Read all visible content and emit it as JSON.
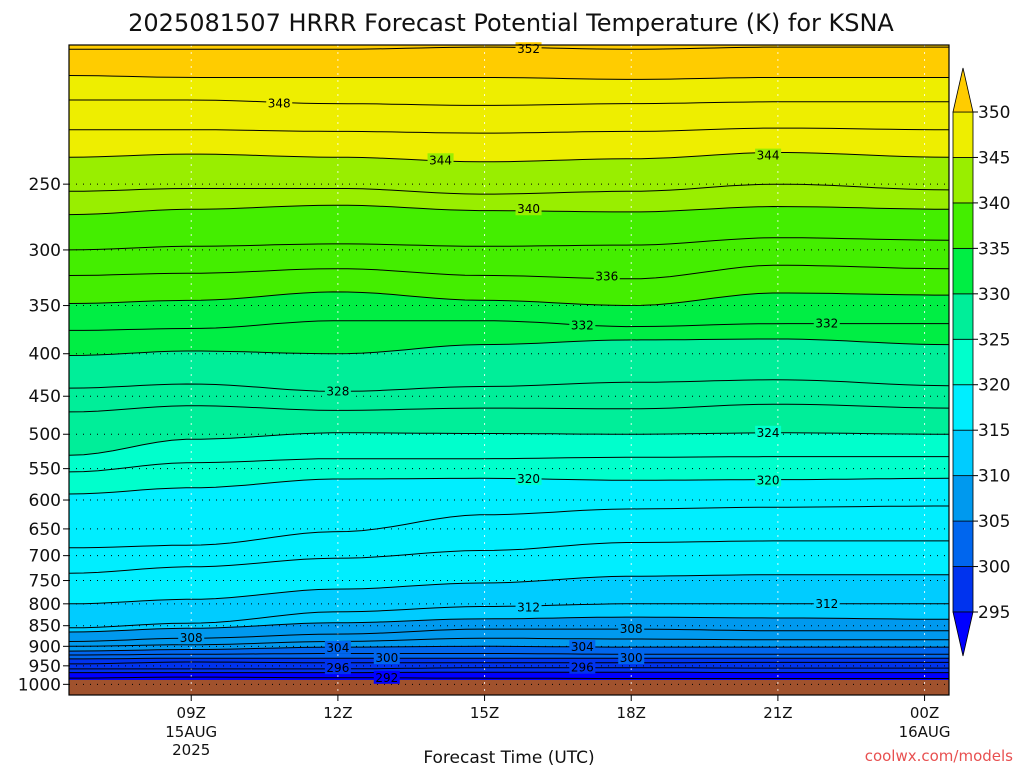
{
  "chart_data": {
    "type": "contour",
    "title": "2025081507 HRRR Forecast Potential Temperature (K) for KSNA",
    "xlabel": "Forecast Time (UTC)",
    "ylabel": "",
    "credit": "coolwx.com/models",
    "y_scale": "log-pressure",
    "ylim": [
      1030,
      170
    ],
    "xlim_hours": [
      6.5,
      24.5
    ],
    "y_ticks": [
      250,
      300,
      350,
      400,
      450,
      500,
      550,
      600,
      650,
      700,
      750,
      800,
      850,
      900,
      950,
      1000
    ],
    "x_ticks": [
      {
        "hour": 9,
        "label": "09Z",
        "sub": "15AUG",
        "sub2": "2025"
      },
      {
        "hour": 12,
        "label": "12Z",
        "sub": "",
        "sub2": ""
      },
      {
        "hour": 15,
        "label": "15Z",
        "sub": "",
        "sub2": ""
      },
      {
        "hour": 18,
        "label": "18Z",
        "sub": "",
        "sub2": ""
      },
      {
        "hour": 21,
        "label": "21Z",
        "sub": "",
        "sub2": ""
      },
      {
        "hour": 24,
        "label": "00Z",
        "sub": "16AUG",
        "sub2": ""
      }
    ],
    "colorbar": {
      "levels": [
        295,
        300,
        305,
        310,
        315,
        320,
        325,
        330,
        335,
        340,
        345,
        350
      ],
      "colors": [
        "#0000ff",
        "#0033ee",
        "#0066ee",
        "#0099ee",
        "#00ccff",
        "#00eeff",
        "#00ffcc",
        "#00ee99",
        "#00ee44",
        "#44ee00",
        "#99ee00",
        "#eeee00",
        "#ffcc00"
      ]
    },
    "ground_color": "#a0522d",
    "contour_hours": [
      6.5,
      9,
      12,
      15,
      18,
      21,
      24.5
    ],
    "contours": [
      {
        "theta": 352,
        "p": [
          172,
          172,
          172,
          171,
          172,
          171,
          171
        ]
      },
      {
        "theta": 350,
        "p": [
          185,
          186,
          186,
          186,
          187,
          186,
          186
        ]
      },
      {
        "theta": 348,
        "p": [
          198,
          198,
          200,
          201,
          200,
          199,
          199
        ]
      },
      {
        "theta": 346,
        "p": [
          215,
          215,
          216,
          217,
          216,
          214,
          215
        ]
      },
      {
        "theta": 344,
        "p": [
          232,
          230,
          232,
          235,
          233,
          229,
          232
        ]
      },
      {
        "theta": 342,
        "p": [
          255,
          253,
          253,
          257,
          255,
          250,
          254
        ]
      },
      {
        "theta": 340,
        "p": [
          272,
          268,
          265,
          269,
          270,
          266,
          268
        ]
      },
      {
        "theta": 338,
        "p": [
          300,
          297,
          295,
          297,
          296,
          290,
          292
        ]
      },
      {
        "theta": 336,
        "p": [
          322,
          320,
          316,
          322,
          325,
          313,
          316
        ]
      },
      {
        "theta": 334,
        "p": [
          348,
          345,
          337,
          345,
          350,
          338,
          340
        ]
      },
      {
        "theta": 332,
        "p": [
          375,
          373,
          365,
          365,
          371,
          368,
          368
        ]
      },
      {
        "theta": 330,
        "p": [
          402,
          397,
          400,
          390,
          385,
          384,
          390
        ]
      },
      {
        "theta": 328,
        "p": [
          440,
          435,
          444,
          438,
          433,
          430,
          437
        ]
      },
      {
        "theta": 326,
        "p": [
          470,
          462,
          468,
          465,
          466,
          460,
          465
        ]
      },
      {
        "theta": 324,
        "p": [
          530,
          507,
          498,
          499,
          500,
          498,
          500
        ]
      },
      {
        "theta": 322,
        "p": [
          555,
          541,
          535,
          535,
          533,
          532,
          532
        ]
      },
      {
        "theta": 320,
        "p": [
          590,
          580,
          566,
          565,
          568,
          567,
          565
        ]
      },
      {
        "theta": 318,
        "p": [
          685,
          680,
          655,
          625,
          615,
          612,
          610
        ]
      },
      {
        "theta": 316,
        "p": [
          735,
          722,
          705,
          690,
          675,
          672,
          672
        ]
      },
      {
        "theta": 314,
        "p": [
          800,
          790,
          768,
          755,
          741,
          738,
          738
        ]
      },
      {
        "theta": 312,
        "p": [
          855,
          844,
          818,
          806,
          800,
          800,
          800
        ]
      },
      {
        "theta": 310,
        "p": [
          865,
          856,
          843,
          834,
          830,
          832,
          835
        ]
      },
      {
        "theta": 308,
        "p": [
          888,
          880,
          870,
          858,
          858,
          862,
          862
        ]
      },
      {
        "theta": 306,
        "p": [
          900,
          896,
          888,
          880,
          882,
          884,
          884
        ]
      },
      {
        "theta": 304,
        "p": [
          912,
          908,
          902,
          900,
          902,
          902,
          902
        ]
      },
      {
        "theta": 302,
        "p": [
          922,
          920,
          918,
          918,
          920,
          920,
          920
        ]
      },
      {
        "theta": 300,
        "p": [
          932,
          930,
          930,
          930,
          930,
          930,
          930
        ]
      },
      {
        "theta": 298,
        "p": [
          945,
          940,
          942,
          942,
          942,
          941,
          941
        ]
      },
      {
        "theta": 296,
        "p": [
          958,
          958,
          958,
          955,
          955,
          956,
          956
        ]
      },
      {
        "theta": 294,
        "p": [
          968,
          968,
          968,
          967,
          967,
          968,
          968
        ]
      },
      {
        "theta": 292,
        "p": [
          983,
          980,
          982,
          983,
          984,
          984,
          984
        ]
      }
    ],
    "contour_labels": [
      {
        "text": "352",
        "hour": 15.9,
        "p": 172
      },
      {
        "text": "348",
        "hour": 10.8,
        "p": 200
      },
      {
        "text": "344",
        "hour": 14.1,
        "p": 234
      },
      {
        "text": "344",
        "hour": 20.8,
        "p": 231
      },
      {
        "text": "340",
        "hour": 15.9,
        "p": 268
      },
      {
        "text": "336",
        "hour": 17.5,
        "p": 323
      },
      {
        "text": "332",
        "hour": 17.0,
        "p": 370
      },
      {
        "text": "332",
        "hour": 22.0,
        "p": 368
      },
      {
        "text": "328",
        "hour": 12.0,
        "p": 444
      },
      {
        "text": "324",
        "hour": 20.8,
        "p": 498
      },
      {
        "text": "320",
        "hour": 15.9,
        "p": 566
      },
      {
        "text": "320",
        "hour": 20.8,
        "p": 568
      },
      {
        "text": "312",
        "hour": 15.9,
        "p": 808
      },
      {
        "text": "312",
        "hour": 22.0,
        "p": 800
      },
      {
        "text": "308",
        "hour": 9.0,
        "p": 880
      },
      {
        "text": "308",
        "hour": 18.0,
        "p": 858
      },
      {
        "text": "304",
        "hour": 12.0,
        "p": 904
      },
      {
        "text": "304",
        "hour": 17.0,
        "p": 902
      },
      {
        "text": "300",
        "hour": 13.0,
        "p": 930
      },
      {
        "text": "300",
        "hour": 18.0,
        "p": 930
      },
      {
        "text": "296",
        "hour": 12.0,
        "p": 956
      },
      {
        "text": "296",
        "hour": 17.0,
        "p": 955
      },
      {
        "text": "292",
        "hour": 13.0,
        "p": 982
      }
    ]
  }
}
